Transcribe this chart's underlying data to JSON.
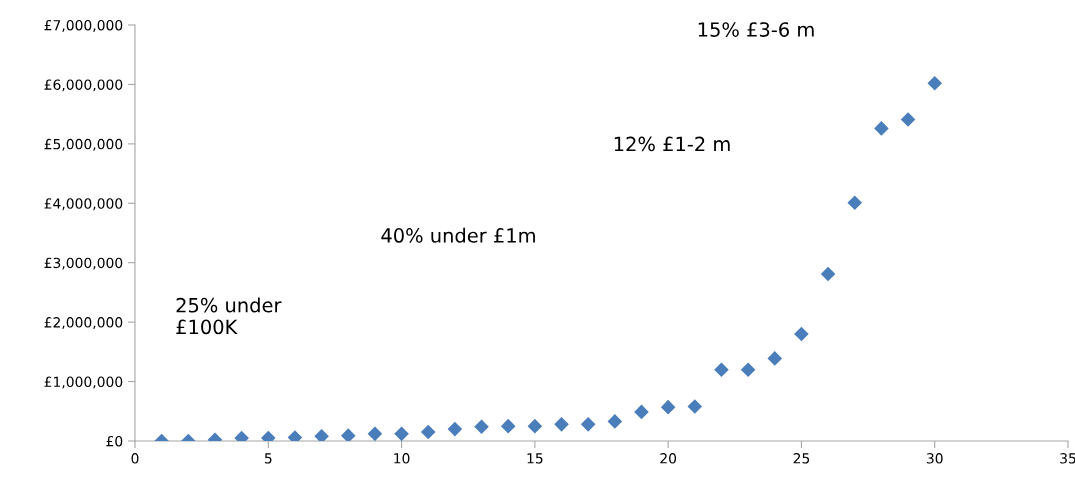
{
  "chart_data": {
    "type": "scatter",
    "marker": "diamond",
    "x": [
      1,
      2,
      3,
      4,
      5,
      6,
      7,
      8,
      9,
      10,
      11,
      12,
      13,
      14,
      15,
      16,
      17,
      18,
      19,
      20,
      21,
      22,
      23,
      24,
      25,
      26,
      27,
      28,
      29,
      30
    ],
    "series": [
      {
        "color": "#4a7ebb",
        "values": [
          0,
          0,
          20000,
          50000,
          50000,
          60000,
          80000,
          90000,
          120000,
          120000,
          150000,
          200000,
          240000,
          250000,
          250000,
          280000,
          280000,
          330000,
          490000,
          570000,
          580000,
          1200000,
          1200000,
          1390000,
          1800000,
          2810000,
          4010000,
          5260000,
          5410000,
          6020000
        ]
      }
    ],
    "xlim": [
      0,
      35
    ],
    "xticks": [
      0,
      5,
      10,
      15,
      20,
      25,
      30,
      35
    ],
    "ylim": [
      0,
      7000000
    ],
    "yticks": [
      {
        "value": 0,
        "label": "£0"
      },
      {
        "value": 1000000,
        "label": "£1,000,000"
      },
      {
        "value": 2000000,
        "label": "£2,000,000"
      },
      {
        "value": 3000000,
        "label": "£3,000,000"
      },
      {
        "value": 4000000,
        "label": "£4,000,000"
      },
      {
        "value": 5000000,
        "label": "£5,000,000"
      },
      {
        "value": 6000000,
        "label": "£6,000,000"
      },
      {
        "value": 7000000,
        "label": "£7,000,000"
      }
    ],
    "grid": false,
    "annotations": [
      "25% under\n£100K",
      "40% under £1m",
      "12% £1-2 m",
      "15% £3-6 m"
    ]
  }
}
